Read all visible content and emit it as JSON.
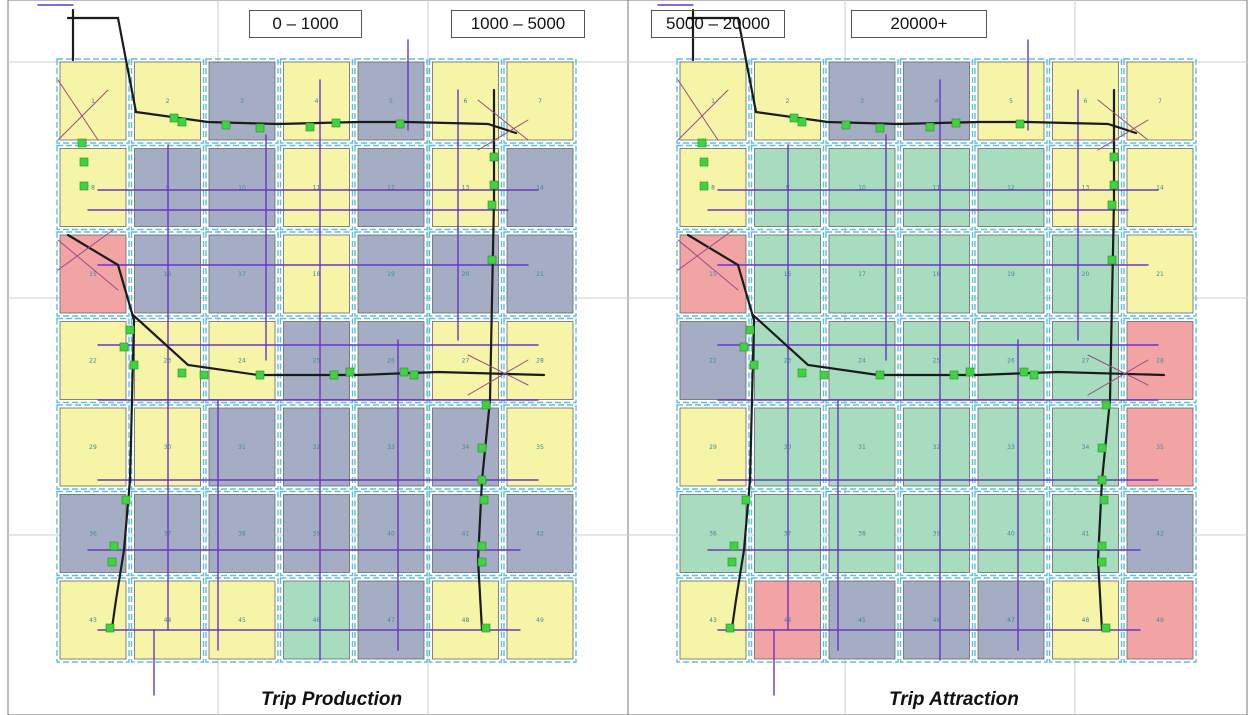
{
  "legend": [
    {
      "label": "0 – 1000",
      "color": "#a8dcbf"
    },
    {
      "label": "1000 – 5000",
      "color": "#a4adc4"
    },
    {
      "label": "5000 – 20000",
      "color": "#f6f4a7"
    },
    {
      "label": "20000+",
      "color": "#f2a4a4"
    }
  ],
  "colors": {
    "road_major": "#1b1b1b",
    "road_minor": "#6a35c6",
    "connector": "#9a4a8a",
    "node": "#3fd43f",
    "zone_border": "#5bc0de",
    "grid_line": "#cccccc"
  },
  "panels": [
    {
      "title": "Trip Production",
      "zone_categories": [
        2,
        2,
        1,
        2,
        1,
        2,
        2,
        2,
        1,
        1,
        2,
        1,
        2,
        1,
        3,
        1,
        1,
        2,
        1,
        1,
        1,
        2,
        2,
        2,
        1,
        1,
        2,
        2,
        2,
        2,
        1,
        1,
        1,
        1,
        2,
        1,
        1,
        1,
        1,
        1,
        1,
        1,
        2,
        2,
        2,
        0,
        1,
        2,
        2
      ]
    },
    {
      "title": "Trip Attraction",
      "zone_categories": [
        2,
        2,
        1,
        1,
        2,
        2,
        2,
        2,
        0,
        0,
        0,
        0,
        2,
        2,
        3,
        0,
        0,
        0,
        0,
        0,
        2,
        1,
        0,
        0,
        0,
        0,
        0,
        3,
        2,
        0,
        0,
        0,
        0,
        0,
        3,
        0,
        0,
        0,
        0,
        0,
        0,
        1,
        2,
        3,
        1,
        1,
        1,
        2,
        3
      ]
    }
  ],
  "zone_numbers": [
    "1",
    "2",
    "3",
    "4",
    "5",
    "6",
    "7",
    "8",
    "9",
    "10",
    "11",
    "12",
    "13",
    "14",
    "15",
    "16",
    "17",
    "18",
    "19",
    "20",
    "21",
    "22",
    "23",
    "24",
    "25",
    "26",
    "27",
    "28",
    "29",
    "30",
    "31",
    "32",
    "33",
    "34",
    "35",
    "36",
    "37",
    "38",
    "39",
    "40",
    "41",
    "42",
    "43",
    "44",
    "45",
    "46",
    "47",
    "48",
    "49"
  ]
}
